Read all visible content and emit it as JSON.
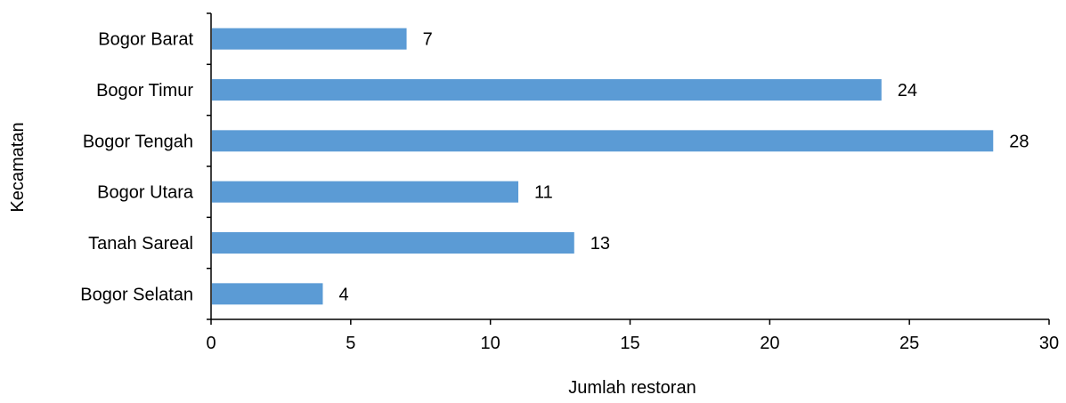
{
  "chart_data": {
    "type": "bar",
    "orientation": "horizontal",
    "categories": [
      "Bogor Barat",
      "Bogor Timur",
      "Bogor Tengah",
      "Bogor Utara",
      "Tanah Sareal",
      "Bogor Selatan"
    ],
    "values": [
      7,
      24,
      28,
      11,
      13,
      4
    ],
    "data_labels": [
      "7",
      "24",
      "28",
      "11",
      "13",
      "4"
    ],
    "title": "",
    "xlabel": "Jumlah restoran",
    "ylabel": "Kecamatan",
    "xlim": [
      0,
      30
    ],
    "x_ticks": [
      0,
      5,
      10,
      15,
      20,
      25,
      30
    ],
    "x_tick_labels": [
      "0",
      "5",
      "10",
      "15",
      "20",
      "25",
      "30"
    ],
    "grid": false,
    "legend": "none",
    "bar_color": "#5b9bd5",
    "axis_color": "#000000"
  }
}
